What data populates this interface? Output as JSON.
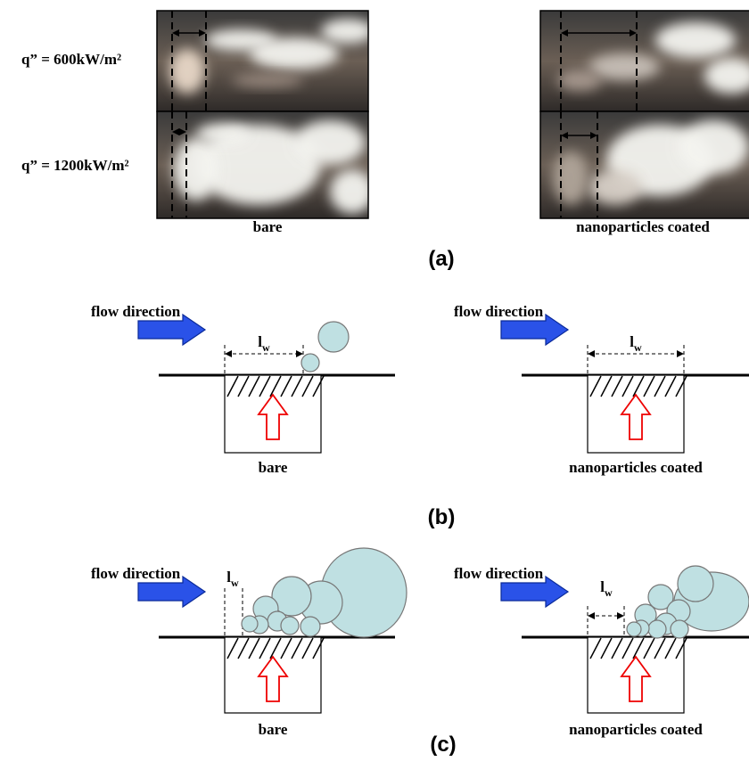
{
  "panel_a": {
    "rows": [
      {
        "label": "q” = 600kW/m²"
      },
      {
        "label": "q” = 1200kW/m²"
      }
    ],
    "captions": [
      "bare",
      "nanoparticles coated"
    ],
    "tag": "(a)"
  },
  "panel_b": {
    "left": {
      "flow": "flow direction",
      "lw_main": "l",
      "lw_sub": "w",
      "caption": "bare"
    },
    "right": {
      "flow": "flow direction",
      "lw_main": "l",
      "lw_sub": "w",
      "caption": "nanoparticles coated"
    },
    "tag": "(b)"
  },
  "panel_c": {
    "left": {
      "flow": "flow direction",
      "lw_main": "l",
      "lw_sub": "w",
      "caption": "bare"
    },
    "right": {
      "flow": "flow direction",
      "lw_main": "l",
      "lw_sub": "w",
      "caption": "nanoparticles coated"
    },
    "tag": "(c)"
  }
}
